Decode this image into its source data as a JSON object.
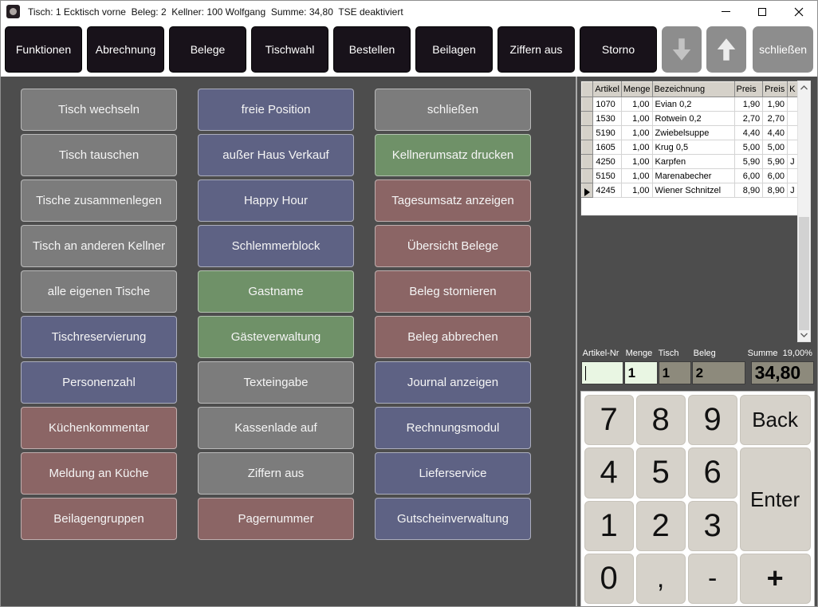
{
  "window": {
    "title": "Tisch: 1 Ecktisch vorne  Beleg: 2  Kellner: 100 Wolfgang  Summe: 34,80  TSE deaktiviert"
  },
  "toolbar": {
    "buttons": [
      "Funktionen",
      "Abrechnung",
      "Belege",
      "Tischwahl",
      "Bestellen",
      "Beilagen",
      "Ziffern aus",
      "Storno"
    ],
    "scroll_down_icon": "arrow-down",
    "scroll_up_icon": "arrow-up",
    "close_label": "schließen"
  },
  "palette": {
    "gray": "#7c7c7c",
    "blue": "#5e6284",
    "green": "#6f9168",
    "red": "#8b6565",
    "toolbar_black": "#18121a",
    "toolbar_gray": "#8d8d8d",
    "input_green": "#e9f6e3",
    "input_olive": "#8d8a7c"
  },
  "functions_grid": {
    "columns": [
      [
        {
          "label": "Tisch wechseln",
          "color": "gray"
        },
        {
          "label": "Tisch tauschen",
          "color": "gray"
        },
        {
          "label": "Tische zusammenlegen",
          "color": "gray"
        },
        {
          "label": "Tisch an anderen Kellner",
          "color": "gray"
        },
        {
          "label": "alle eigenen Tische",
          "color": "gray"
        },
        {
          "label": "Tischreservierung",
          "color": "blue"
        },
        {
          "label": "Personenzahl",
          "color": "blue"
        },
        {
          "label": "Küchenkommentar",
          "color": "red"
        },
        {
          "label": "Meldung an Küche",
          "color": "red"
        },
        {
          "label": "Beilagengruppen",
          "color": "red"
        }
      ],
      [
        {
          "label": "freie Position",
          "color": "blue"
        },
        {
          "label": "außer Haus Verkauf",
          "color": "blue"
        },
        {
          "label": "Happy Hour",
          "color": "blue"
        },
        {
          "label": "Schlemmerblock",
          "color": "blue"
        },
        {
          "label": "Gastname",
          "color": "green"
        },
        {
          "label": "Gästeverwaltung",
          "color": "green"
        },
        {
          "label": "Texteingabe",
          "color": "gray"
        },
        {
          "label": "Kassenlade auf",
          "color": "gray"
        },
        {
          "label": "Ziffern aus",
          "color": "gray"
        },
        {
          "label": "Pagernummer",
          "color": "red"
        }
      ],
      [
        {
          "label": "schließen",
          "color": "gray"
        },
        {
          "label": "Kellnerumsatz drucken",
          "color": "green"
        },
        {
          "label": "Tagesumsatz anzeigen",
          "color": "red"
        },
        {
          "label": "Übersicht Belege",
          "color": "red"
        },
        {
          "label": "Beleg stornieren",
          "color": "red"
        },
        {
          "label": "Beleg abbrechen",
          "color": "red"
        },
        {
          "label": "Journal anzeigen",
          "color": "blue"
        },
        {
          "label": "Rechnungsmodul",
          "color": "blue"
        },
        {
          "label": "Lieferservice",
          "color": "blue"
        },
        {
          "label": "Gutscheinverwaltung",
          "color": "blue"
        }
      ]
    ]
  },
  "order_table": {
    "headers": [
      "Artikel",
      "Menge",
      "Bezeichnung",
      "Preis",
      "Preis",
      "K"
    ],
    "rows": [
      {
        "artikel": "1070",
        "menge": "1,00",
        "bezeichnung": "Evian 0,2",
        "preis": "1,90",
        "preis2": "1,90",
        "k": ""
      },
      {
        "artikel": "1530",
        "menge": "1,00",
        "bezeichnung": "Rotwein 0,2",
        "preis": "2,70",
        "preis2": "2,70",
        "k": ""
      },
      {
        "artikel": "5190",
        "menge": "1,00",
        "bezeichnung": "Zwiebelsuppe",
        "preis": "4,40",
        "preis2": "4,40",
        "k": ""
      },
      {
        "artikel": "1605",
        "menge": "1,00",
        "bezeichnung": "Krug 0,5",
        "preis": "5,00",
        "preis2": "5,00",
        "k": ""
      },
      {
        "artikel": "4250",
        "menge": "1,00",
        "bezeichnung": "Karpfen",
        "preis": "5,90",
        "preis2": "5,90",
        "k": "J"
      },
      {
        "artikel": "5150",
        "menge": "1,00",
        "bezeichnung": "Marenabecher",
        "preis": "6,00",
        "preis2": "6,00",
        "k": ""
      },
      {
        "artikel": "4245",
        "menge": "1,00",
        "bezeichnung": "Wiener Schnitzel",
        "preis": "8,90",
        "preis2": "8,90",
        "k": "J"
      }
    ],
    "selected_row_index": 6
  },
  "entry": {
    "artikel_nr": {
      "label": "Artikel-Nr",
      "value": ""
    },
    "menge": {
      "label": "Menge",
      "value": "1"
    },
    "tisch": {
      "label": "Tisch",
      "value": "1"
    },
    "beleg": {
      "label": "Beleg",
      "value": "2"
    },
    "summe": {
      "label": "Summe",
      "value": "34,80"
    },
    "tax_rate": "19,00%"
  },
  "numpad": {
    "keys": [
      {
        "label": "7",
        "area": "k7",
        "cls": "digit"
      },
      {
        "label": "8",
        "area": "k8",
        "cls": "digit"
      },
      {
        "label": "9",
        "area": "k9",
        "cls": "digit"
      },
      {
        "label": "Back",
        "area": "back",
        "cls": "fn"
      },
      {
        "label": "4",
        "area": "k4",
        "cls": "digit"
      },
      {
        "label": "5",
        "area": "k5",
        "cls": "digit"
      },
      {
        "label": "6",
        "area": "k6",
        "cls": "digit"
      },
      {
        "label": "Enter",
        "area": "enter",
        "cls": "fn"
      },
      {
        "label": "1",
        "area": "k1",
        "cls": "digit"
      },
      {
        "label": "2",
        "area": "k2",
        "cls": "digit"
      },
      {
        "label": "3",
        "area": "k3",
        "cls": "digit"
      },
      {
        "label": "0",
        "area": "k0",
        "cls": "digit"
      },
      {
        "label": ",",
        "area": "comma",
        "cls": "sym"
      },
      {
        "label": "-",
        "area": "minus",
        "cls": "sym"
      },
      {
        "label": "+",
        "area": "plus",
        "cls": "plus"
      }
    ]
  }
}
